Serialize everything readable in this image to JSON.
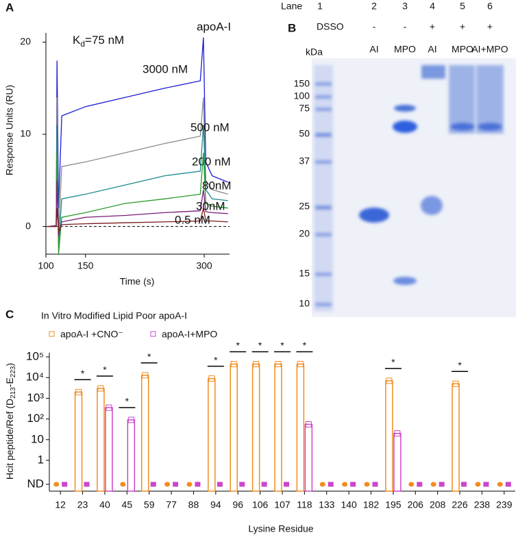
{
  "chart_data": [
    {
      "type": "line",
      "panel": "A",
      "title": "apoA-I",
      "annotation": {
        "main": "K",
        "sub": "d",
        "rest": "=75 nM"
      },
      "x_label": "Time (s)",
      "y_label": "Response Units (RU)",
      "xlim": [
        100,
        332
      ],
      "xticks": [
        100,
        150,
        300
      ],
      "ylim": [
        -3,
        21
      ],
      "yticks": [
        0,
        10,
        20
      ],
      "reference_line": 0,
      "x": [
        102,
        113,
        114,
        116,
        120,
        150,
        200,
        250,
        295,
        299,
        302,
        310,
        330
      ],
      "series": [
        {
          "name": "3000 nM",
          "color": "#1a1ad6",
          "values": [
            0,
            0,
            18,
            2,
            12,
            13,
            14,
            15,
            15.8,
            20.5,
            7,
            5.5,
            4.8
          ]
        },
        {
          "name": "500 nM",
          "color": "#8a8a8a",
          "values": [
            0,
            0,
            14,
            -1,
            6.5,
            7,
            8,
            9,
            9.8,
            14,
            5,
            4,
            3.5
          ]
        },
        {
          "name": "200 nM",
          "color": "#1a8a8a",
          "values": [
            0,
            0,
            11,
            -2,
            3,
            3.5,
            4.5,
            5.5,
            6,
            11,
            4,
            3,
            2.8
          ]
        },
        {
          "name": "80nM",
          "color": "#2a9a2a",
          "values": [
            0,
            0,
            8,
            -3,
            1,
            1.5,
            2.5,
            3,
            3.5,
            8,
            2.5,
            2.2,
            2
          ]
        },
        {
          "name": "30nM",
          "color": "#7a1a7a",
          "values": [
            0,
            0.1,
            5,
            -1,
            0.5,
            1,
            1.2,
            1.5,
            1.7,
            4,
            1.6,
            1.5,
            1.4
          ]
        },
        {
          "name": "0.5 nM",
          "color": "#7a1a1a",
          "values": [
            0,
            0,
            2,
            -0.5,
            0.2,
            0.3,
            0.4,
            0.5,
            0.6,
            2,
            0.6,
            0.6,
            0.5
          ]
        }
      ]
    },
    {
      "type": "bar",
      "panel": "C",
      "title": "In Vitro Modified Lipid Poor apoA-I",
      "x_label": "Lysine Residue",
      "y_label": {
        "main": "Hcit peptide/Ref (D",
        "sub1": "213",
        "mid": "-E",
        "sub2": "223",
        "end": ")"
      },
      "log_scale": true,
      "ylim": [
        1,
        100000
      ],
      "yticks": [
        {
          "value": null,
          "label": "ND"
        },
        1,
        10,
        {
          "value": 100,
          "label": "10²"
        },
        {
          "value": 1000,
          "label": "10³"
        },
        {
          "value": 10000,
          "label": "10⁴"
        },
        {
          "value": 100000,
          "label": "10⁵"
        }
      ],
      "categories": [
        "12",
        "23",
        "40",
        "45",
        "59",
        "77",
        "88",
        "94",
        "96",
        "106",
        "107",
        "118",
        "133",
        "140",
        "182",
        "195",
        "206",
        "208",
        "226",
        "238",
        "239"
      ],
      "series": [
        {
          "name": "apoA-I +CNO⁻",
          "color": "#f28c1e",
          "values": [
            null,
            2000,
            3000,
            null,
            13000,
            null,
            null,
            9000,
            45000,
            45000,
            45000,
            45000,
            null,
            null,
            null,
            7000,
            null,
            null,
            5000,
            null,
            null
          ]
        },
        {
          "name": "apoA-I+MPO",
          "color": "#cc44cc",
          "values": [
            null,
            null,
            350,
            90,
            null,
            null,
            null,
            null,
            null,
            null,
            null,
            55,
            null,
            null,
            null,
            20,
            null,
            null,
            null,
            null,
            null
          ]
        }
      ],
      "significance": [
        {
          "residue": "23",
          "label": "*"
        },
        {
          "residue": "40",
          "label": "*"
        },
        {
          "residue": "45",
          "label": "*"
        },
        {
          "residue": "59",
          "label": "*"
        },
        {
          "residue": "94",
          "label": "*"
        },
        {
          "residue": "96",
          "label": "*"
        },
        {
          "residue": "106",
          "label": "*"
        },
        {
          "residue": "107",
          "label": "*"
        },
        {
          "residue": "118",
          "label": "*"
        },
        {
          "residue": "195",
          "label": "*"
        },
        {
          "residue": "226",
          "label": "*"
        }
      ]
    }
  ],
  "gel": {
    "panel": "B",
    "lane_header": "Lane",
    "lanes": [
      "1",
      "2",
      "3",
      "4",
      "5",
      "6"
    ],
    "reagent": "DSSO",
    "reagent_signs": [
      "-",
      "-",
      "+",
      "+",
      "+"
    ],
    "samples": [
      "AI",
      "MPO",
      "AI",
      "MPO",
      "AI+MPO"
    ],
    "unit": "kDa",
    "markers": [
      "150",
      "100",
      "75",
      "50",
      "37",
      "25",
      "20",
      "15",
      "10"
    ]
  }
}
